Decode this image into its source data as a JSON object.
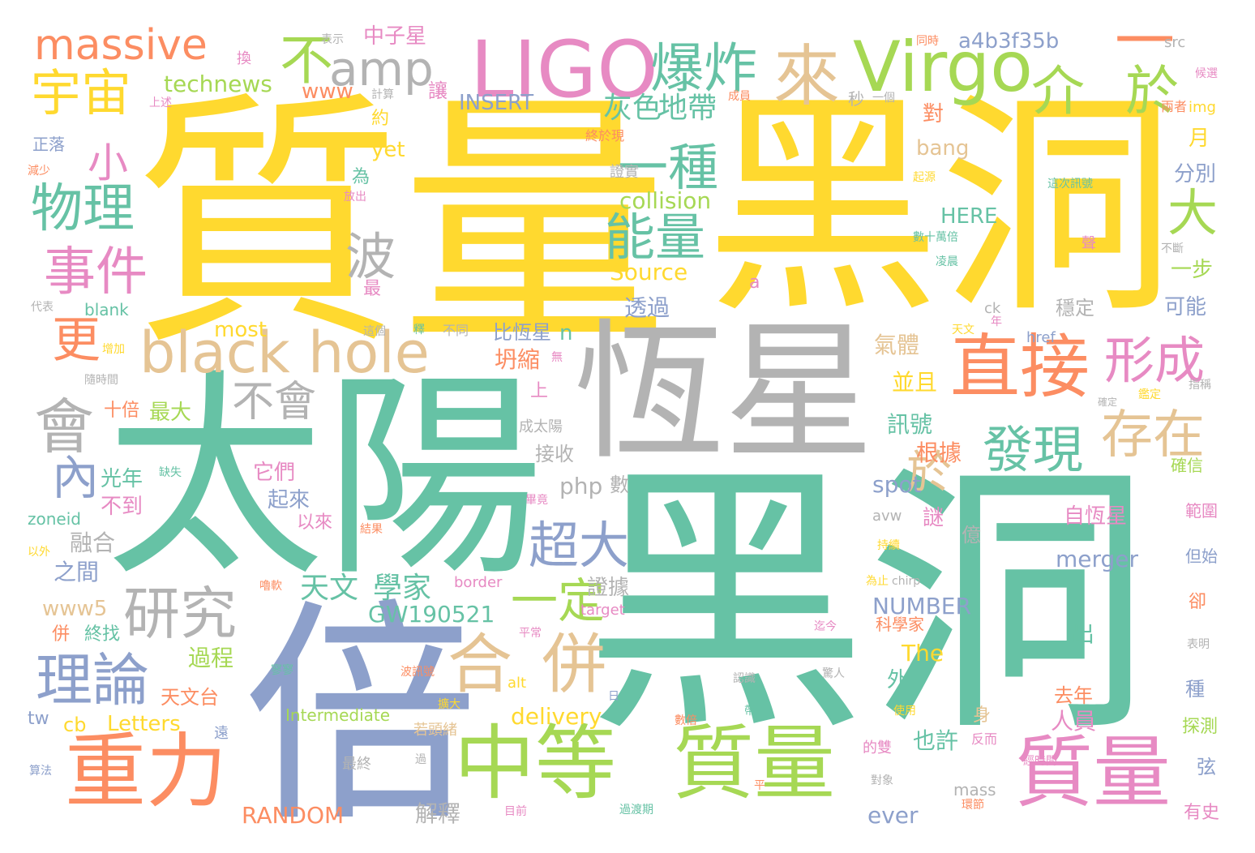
{
  "palette": {
    "yellow": "#ffd92f",
    "teal": "#66c2a5",
    "orange": "#fc8d62",
    "blue": "#8da0cb",
    "pink": "#e78ac3",
    "green": "#a6d854",
    "tan": "#e5c494",
    "gray": "#b3b3b3"
  },
  "words": [
    {
      "text": "質量",
      "color": "yellow"
    },
    {
      "text": "黑洞",
      "color": "yellow"
    },
    {
      "text": "黑洞",
      "color": "teal"
    },
    {
      "text": "太陽",
      "color": "teal"
    },
    {
      "text": "恆星",
      "color": "gray"
    },
    {
      "text": "倍",
      "color": "blue"
    },
    {
      "text": "LIGO",
      "color": "pink"
    },
    {
      "text": "Virgo",
      "color": "green"
    },
    {
      "text": "中等",
      "color": "green"
    },
    {
      "text": "質量",
      "color": "green"
    },
    {
      "text": "質量",
      "color": "pink"
    },
    {
      "text": "重力",
      "color": "orange"
    },
    {
      "text": "black hole",
      "color": "tan"
    },
    {
      "text": "直接",
      "color": "orange"
    },
    {
      "text": "massive",
      "color": "orange"
    },
    {
      "text": "宇宙",
      "color": "yellow"
    },
    {
      "text": "amp",
      "color": "gray"
    },
    {
      "text": "不",
      "color": "green"
    },
    {
      "text": "爆炸",
      "color": "teal"
    },
    {
      "text": "來",
      "color": "tan"
    },
    {
      "text": "一",
      "color": "orange"
    },
    {
      "text": "介",
      "color": "green"
    },
    {
      "text": "於",
      "color": "green"
    },
    {
      "text": "小",
      "color": "pink"
    },
    {
      "text": "物理",
      "color": "teal"
    },
    {
      "text": "事件",
      "color": "pink"
    },
    {
      "text": "理論",
      "color": "blue"
    },
    {
      "text": "研究",
      "color": "gray"
    },
    {
      "text": "會",
      "color": "gray"
    },
    {
      "text": "合",
      "color": "tan"
    },
    {
      "text": "併",
      "color": "tan"
    },
    {
      "text": "形成",
      "color": "pink"
    },
    {
      "text": "存在",
      "color": "tan"
    },
    {
      "text": "發現",
      "color": "teal"
    },
    {
      "text": "能量",
      "color": "teal"
    },
    {
      "text": "一種",
      "color": "teal"
    },
    {
      "text": "波",
      "color": "gray"
    },
    {
      "text": "超大",
      "color": "blue"
    },
    {
      "text": "大",
      "color": "green"
    },
    {
      "text": "不會",
      "color": "gray"
    },
    {
      "text": "更",
      "color": "orange"
    },
    {
      "text": "內",
      "color": "blue"
    },
    {
      "text": "一定",
      "color": "green"
    },
    {
      "text": "於",
      "color": "tan"
    },
    {
      "text": "灰色",
      "color": "teal"
    },
    {
      "text": "地帶",
      "color": "teal"
    },
    {
      "text": "天文",
      "color": "teal"
    },
    {
      "text": "學家",
      "color": "teal"
    },
    {
      "text": "technews",
      "color": "green"
    },
    {
      "text": "中子星",
      "color": "pink"
    },
    {
      "text": "a4b3f35b",
      "color": "blue"
    },
    {
      "text": "www",
      "color": "orange"
    },
    {
      "text": "INSERT",
      "color": "blue"
    },
    {
      "text": "collision",
      "color": "green"
    },
    {
      "text": "HERE",
      "color": "teal"
    },
    {
      "text": "Source",
      "color": "yellow"
    },
    {
      "text": "bang",
      "color": "tan"
    },
    {
      "text": "yet",
      "color": "yellow"
    },
    {
      "text": "most",
      "color": "yellow"
    },
    {
      "text": "透過",
      "color": "blue"
    },
    {
      "text": "比恆星",
      "color": "blue"
    },
    {
      "text": "坍縮",
      "color": "orange"
    },
    {
      "text": "氣體",
      "color": "tan"
    },
    {
      "text": "並且",
      "color": "yellow"
    },
    {
      "text": "訊號",
      "color": "teal"
    },
    {
      "text": "根據",
      "color": "orange"
    },
    {
      "text": "spot",
      "color": "blue"
    },
    {
      "text": "php",
      "color": "gray"
    },
    {
      "text": "自恆星",
      "color": "pink"
    },
    {
      "text": "merger",
      "color": "blue"
    },
    {
      "text": "NUMBER",
      "color": "blue"
    },
    {
      "text": "GW190521",
      "color": "teal"
    },
    {
      "text": "delivery",
      "color": "yellow"
    },
    {
      "text": "Letters",
      "color": "yellow"
    },
    {
      "text": "Intermediate",
      "color": "green"
    },
    {
      "text": "RANDOM",
      "color": "orange"
    },
    {
      "text": "The",
      "color": "yellow"
    },
    {
      "text": "ever",
      "color": "blue"
    },
    {
      "text": "光年",
      "color": "teal"
    },
    {
      "text": "不到",
      "color": "pink"
    },
    {
      "text": "融合",
      "color": "gray"
    },
    {
      "text": "之間",
      "color": "blue"
    },
    {
      "text": "www5",
      "color": "tan"
    },
    {
      "text": "過程",
      "color": "green"
    },
    {
      "text": "天文台",
      "color": "orange"
    },
    {
      "text": "最大",
      "color": "green"
    },
    {
      "text": "十倍",
      "color": "orange"
    },
    {
      "text": "它們",
      "color": "pink"
    },
    {
      "text": "起來",
      "color": "blue"
    },
    {
      "text": "以來",
      "color": "pink"
    },
    {
      "text": "證據",
      "color": "gray"
    },
    {
      "text": "解釋",
      "color": "gray"
    },
    {
      "text": "也許",
      "color": "teal"
    },
    {
      "text": "人員",
      "color": "pink"
    },
    {
      "text": "去年",
      "color": "orange"
    },
    {
      "text": "分別",
      "color": "blue"
    },
    {
      "text": "可能",
      "color": "blue"
    },
    {
      "text": "一步",
      "color": "green"
    },
    {
      "text": "穩定",
      "color": "gray"
    },
    {
      "text": "確信",
      "color": "green"
    },
    {
      "text": "範圍",
      "color": "pink"
    },
    {
      "text": "但始",
      "color": "blue"
    },
    {
      "text": "探測",
      "color": "green"
    },
    {
      "text": "有史",
      "color": "pink"
    },
    {
      "text": "種",
      "color": "blue"
    },
    {
      "text": "弦",
      "color": "blue"
    },
    {
      "text": "卻",
      "color": "orange"
    },
    {
      "text": "月",
      "color": "yellow"
    },
    {
      "text": "謎",
      "color": "pink"
    },
    {
      "text": "億",
      "color": "gray"
    },
    {
      "text": "出",
      "color": "teal"
    },
    {
      "text": "外",
      "color": "teal"
    },
    {
      "text": "身",
      "color": "tan"
    },
    {
      "text": "對",
      "color": "orange"
    },
    {
      "text": "讓",
      "color": "pink"
    },
    {
      "text": "約",
      "color": "yellow"
    },
    {
      "text": "為",
      "color": "teal"
    },
    {
      "text": "最",
      "color": "pink"
    },
    {
      "text": "n",
      "color": "teal"
    },
    {
      "text": "上",
      "color": "pink"
    },
    {
      "text": "a",
      "color": "pink"
    },
    {
      "text": "數",
      "color": "gray"
    },
    {
      "text": "併",
      "color": "orange"
    },
    {
      "text": "終找",
      "color": "teal"
    },
    {
      "text": "tw",
      "color": "blue"
    },
    {
      "text": "cb",
      "color": "yellow"
    },
    {
      "text": "zoneid",
      "color": "teal"
    },
    {
      "text": "blank",
      "color": "teal"
    },
    {
      "text": "接收",
      "color": "gray"
    },
    {
      "text": "成太陽",
      "color": "gray"
    },
    {
      "text": "avw",
      "color": "gray"
    },
    {
      "text": "border",
      "color": "pink"
    },
    {
      "text": "target",
      "color": "pink"
    },
    {
      "text": "mass",
      "color": "gray"
    },
    {
      "text": "科學家",
      "color": "orange"
    },
    {
      "text": "若頭緒",
      "color": "tan"
    },
    {
      "text": "最終",
      "color": "gray"
    },
    {
      "text": "src",
      "color": "gray"
    },
    {
      "text": "img",
      "color": "yellow"
    },
    {
      "text": "href",
      "color": "blue"
    },
    {
      "text": "ck",
      "color": "gray"
    },
    {
      "text": "同時",
      "color": "orange"
    },
    {
      "text": "兩者",
      "color": "orange"
    },
    {
      "text": "候選",
      "color": "pink"
    },
    {
      "text": "秒",
      "color": "gray"
    },
    {
      "text": "一個",
      "color": "gray"
    },
    {
      "text": "計算",
      "color": "gray"
    },
    {
      "text": "表示",
      "color": "gray"
    },
    {
      "text": "換",
      "color": "pink"
    },
    {
      "text": "正落",
      "color": "blue"
    },
    {
      "text": "減少",
      "color": "orange"
    },
    {
      "text": "上述",
      "color": "pink"
    },
    {
      "text": "代表",
      "color": "gray"
    },
    {
      "text": "增加",
      "color": "yellow"
    },
    {
      "text": "隨時間",
      "color": "gray"
    },
    {
      "text": "缺失",
      "color": "teal"
    },
    {
      "text": "以外",
      "color": "yellow"
    },
    {
      "text": "終於現",
      "color": "orange"
    },
    {
      "text": "證實",
      "color": "gray"
    },
    {
      "text": "成員",
      "color": "orange"
    },
    {
      "text": "起源",
      "color": "yellow"
    },
    {
      "text": "這次訊號",
      "color": "teal"
    },
    {
      "text": "數十萬倍",
      "color": "teal"
    },
    {
      "text": "放出",
      "color": "pink"
    },
    {
      "text": "凌晨",
      "color": "teal"
    },
    {
      "text": "不斷",
      "color": "gray"
    },
    {
      "text": "聲",
      "color": "pink"
    },
    {
      "text": "天文",
      "color": "yellow"
    },
    {
      "text": "年",
      "color": "pink"
    },
    {
      "text": "不同",
      "color": "gray"
    },
    {
      "text": "釋",
      "color": "teal"
    },
    {
      "text": "這個",
      "color": "gray"
    },
    {
      "text": "無",
      "color": "pink"
    },
    {
      "text": "確定",
      "color": "gray"
    },
    {
      "text": "鑑定",
      "color": "yellow"
    },
    {
      "text": "指稱",
      "color": "gray"
    },
    {
      "text": "畢竟",
      "color": "pink"
    },
    {
      "text": "結果",
      "color": "orange"
    },
    {
      "text": "持續",
      "color": "yellow"
    },
    {
      "text": "為止",
      "color": "yellow"
    },
    {
      "text": "chirp",
      "color": "gray"
    },
    {
      "text": "嚕軟",
      "color": "orange"
    },
    {
      "text": "平常",
      "color": "pink"
    },
    {
      "text": "迄今",
      "color": "pink"
    },
    {
      "text": "寥寥",
      "color": "teal"
    },
    {
      "text": "波訊號",
      "color": "orange"
    },
    {
      "text": "alt",
      "color": "yellow"
    },
    {
      "text": "日",
      "color": "blue"
    },
    {
      "text": "認識",
      "color": "gray"
    },
    {
      "text": "驚人",
      "color": "gray"
    },
    {
      "text": "表明",
      "color": "gray"
    },
    {
      "text": "數倍",
      "color": "orange"
    },
    {
      "text": "使用",
      "color": "yellow"
    },
    {
      "text": "帶",
      "color": "teal"
    },
    {
      "text": "遠",
      "color": "blue"
    },
    {
      "text": "的雙",
      "color": "pink"
    },
    {
      "text": "反而",
      "color": "pink"
    },
    {
      "text": "經時間",
      "color": "pink"
    },
    {
      "text": "對象",
      "color": "gray"
    },
    {
      "text": "平",
      "color": "orange"
    },
    {
      "text": "環節",
      "color": "orange"
    },
    {
      "text": "過渡期",
      "color": "teal"
    },
    {
      "text": "目前",
      "color": "pink"
    },
    {
      "text": "算法",
      "color": "blue"
    },
    {
      "text": "過",
      "color": "gray"
    },
    {
      "text": "擴大",
      "color": "yellow"
    }
  ]
}
